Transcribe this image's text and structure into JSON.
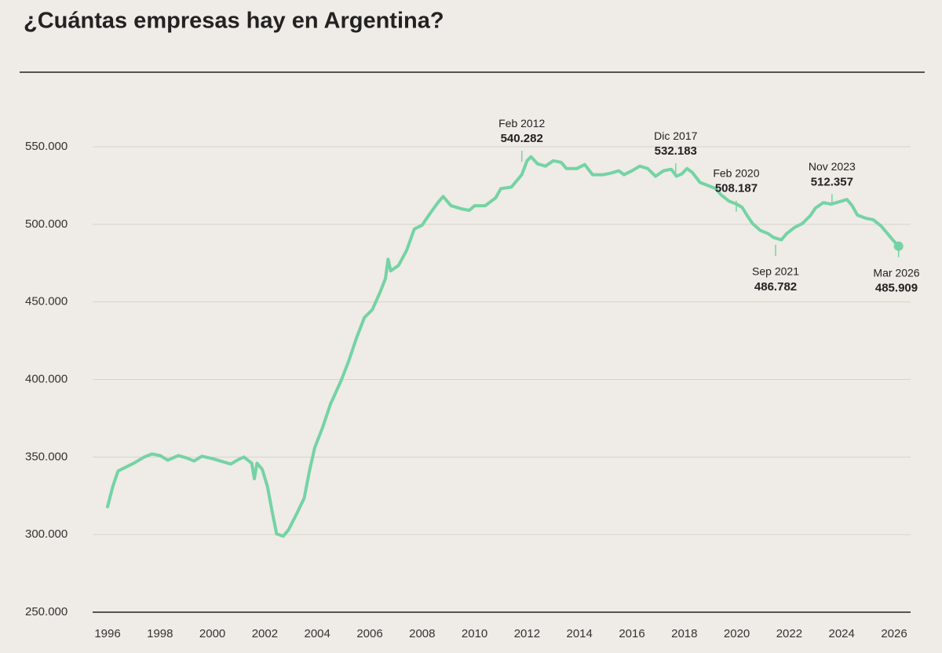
{
  "chart_data": {
    "type": "line",
    "title": "¿Cuántas empresas hay en Argentina?",
    "color": "#74d3a4",
    "grid": true,
    "xlim": [
      1996,
      2026
    ],
    "xticks": [
      1996,
      1998,
      2000,
      2002,
      2004,
      2006,
      2008,
      2010,
      2012,
      2014,
      2016,
      2018,
      2020,
      2022,
      2024,
      2026
    ],
    "ylim": [
      250000,
      550000
    ],
    "yticks": [
      {
        "value": 250000,
        "label": "250.000"
      },
      {
        "value": 300000,
        "label": "300.000"
      },
      {
        "value": 350000,
        "label": "350.000"
      },
      {
        "value": 400000,
        "label": "400.000"
      },
      {
        "value": 450000,
        "label": "450.000"
      },
      {
        "value": 500000,
        "label": "500.000"
      },
      {
        "value": 550000,
        "label": "550.000"
      }
    ],
    "x": [
      1996.0,
      1996.2,
      1996.4,
      1996.7,
      1997.0,
      1997.4,
      1997.7,
      1998.0,
      1998.3,
      1998.7,
      1999.0,
      1999.3,
      1999.6,
      2000.0,
      2000.4,
      2000.7,
      2001.0,
      2001.2,
      2001.5,
      2001.6,
      2001.7,
      2001.9,
      2002.1,
      2002.3,
      2002.45,
      2002.7,
      2002.9,
      2003.2,
      2003.5,
      2003.7,
      2003.9,
      2004.2,
      2004.5,
      2004.9,
      2005.2,
      2005.5,
      2005.8,
      2006.1,
      2006.4,
      2006.6,
      2006.7,
      2006.8,
      2007.1,
      2007.4,
      2007.7,
      2008.0,
      2008.3,
      2008.6,
      2008.8,
      2009.1,
      2009.5,
      2009.8,
      2010.0,
      2010.4,
      2010.8,
      2011.0,
      2011.4,
      2011.8,
      2012.0,
      2012.15,
      2012.4,
      2012.7,
      2013.0,
      2013.3,
      2013.5,
      2013.9,
      2014.2,
      2014.5,
      2014.9,
      2015.2,
      2015.5,
      2015.7,
      2016.0,
      2016.3,
      2016.6,
      2016.9,
      2017.2,
      2017.5,
      2017.7,
      2017.9,
      2018.1,
      2018.3,
      2018.6,
      2018.9,
      2019.2,
      2019.4,
      2019.7,
      2020.0,
      2020.2,
      2020.4,
      2020.6,
      2020.9,
      2021.2,
      2021.4,
      2021.7,
      2021.9,
      2022.2,
      2022.5,
      2022.8,
      2023.0,
      2023.3,
      2023.6,
      2023.9,
      2024.2,
      2024.4,
      2024.6,
      2024.9,
      2025.2,
      2025.5,
      2025.8,
      2026.0,
      2026.17
    ],
    "values": [
      318000,
      331000,
      341000,
      343500,
      346000,
      350000,
      352000,
      351000,
      348000,
      351000,
      349500,
      347500,
      350500,
      349000,
      347000,
      345500,
      348500,
      350000,
      346000,
      336000,
      346000,
      342000,
      331000,
      313000,
      300500,
      299000,
      303000,
      313000,
      323500,
      341000,
      356000,
      369000,
      384000,
      399000,
      412000,
      427000,
      440000,
      445000,
      456500,
      465000,
      477500,
      470000,
      473500,
      483000,
      497000,
      499500,
      507000,
      514000,
      518000,
      512000,
      510000,
      509000,
      512000,
      512000,
      517000,
      523000,
      524000,
      532000,
      541000,
      543500,
      539000,
      537500,
      541000,
      540000,
      536000,
      536000,
      538500,
      532000,
      532000,
      533000,
      534500,
      532000,
      534500,
      537500,
      536000,
      531000,
      534500,
      535500,
      531000,
      532500,
      536000,
      533500,
      527000,
      525000,
      523000,
      519000,
      515000,
      513000,
      511000,
      505500,
      500500,
      496000,
      494000,
      491500,
      490000,
      494000,
      498000,
      500500,
      505500,
      510500,
      514000,
      513000,
      514500,
      516000,
      512000,
      506000,
      504000,
      503000,
      499000,
      493000,
      489000,
      485909
    ],
    "annotations": [
      {
        "x": 2011.8,
        "label": "Feb 2012",
        "value": 540282,
        "value_label": "540.282"
      },
      {
        "x": 2017.67,
        "label": "Dic 2017",
        "value": 532183,
        "value_label": "532.183"
      },
      {
        "x": 2019.98,
        "label": "Feb 2020",
        "value": 508187,
        "value_label": "508.187"
      },
      {
        "x": 2021.48,
        "label": "Sep 2021",
        "value": 486782,
        "value_label": "486.782"
      },
      {
        "x": 2023.63,
        "label": "Nov 2023",
        "value": 512357,
        "value_label": "512.357"
      },
      {
        "x": 2026.17,
        "label": "Mar 2026",
        "value": 485909,
        "value_label": "485.909"
      }
    ]
  }
}
